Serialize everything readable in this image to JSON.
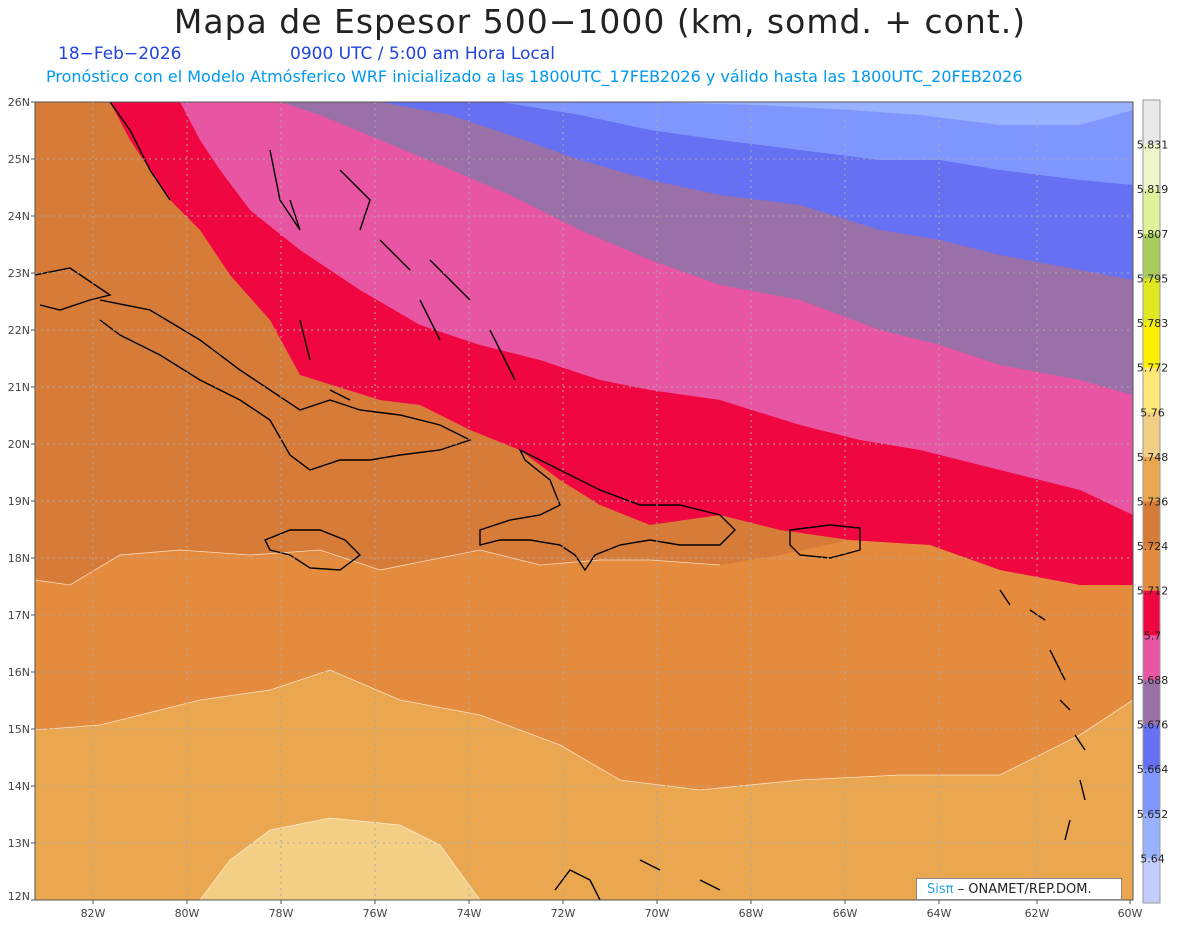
{
  "header": {
    "title": "Mapa de Espesor 500−1000 (km, somd. + cont.)",
    "date": "18−Feb−2026",
    "time": "0900 UTC / 5:00 am Hora Local",
    "model_info": "Pronóstico con el Modelo Atmósferico WRF inicializado a las 1800UTC_17FEB2026 y válido hasta las  1800UTC_20FEB2026"
  },
  "map": {
    "lat_labels": [
      "26N",
      "25N",
      "24N",
      "23N",
      "22N",
      "21N",
      "20N",
      "19N",
      "18N",
      "17N",
      "16N",
      "15N",
      "14N",
      "13N",
      "12N"
    ],
    "lon_labels": [
      "82W",
      "80W",
      "78W",
      "76W",
      "74W",
      "72W",
      "70W",
      "68W",
      "66W",
      "64W",
      "62W",
      "60W"
    ]
  },
  "legend": {
    "levels": [
      "5.831",
      "5.819",
      "5.807",
      "5.795",
      "5.783",
      "5.772",
      "5.76",
      "5.748",
      "5.736",
      "5.724",
      "5.712",
      "5.7",
      "5.688",
      "5.676",
      "5.664",
      "5.652",
      "5.64"
    ],
    "colors": [
      "#e8e8e8",
      "#eef5c8",
      "#dff29a",
      "#a8cc5c",
      "#e2e820",
      "#fff200",
      "#ffe878",
      "#f2cf84",
      "#eba650",
      "#d77b39",
      "#e48b3d",
      "#f00640",
      "#e855a3",
      "#9a70a8",
      "#6570f2",
      "#7e96fe",
      "#98b2ff",
      "#c3ceff"
    ]
  },
  "credit": {
    "brand": "Sisπ",
    "text": " – ONAMET/REP.DOM."
  }
}
